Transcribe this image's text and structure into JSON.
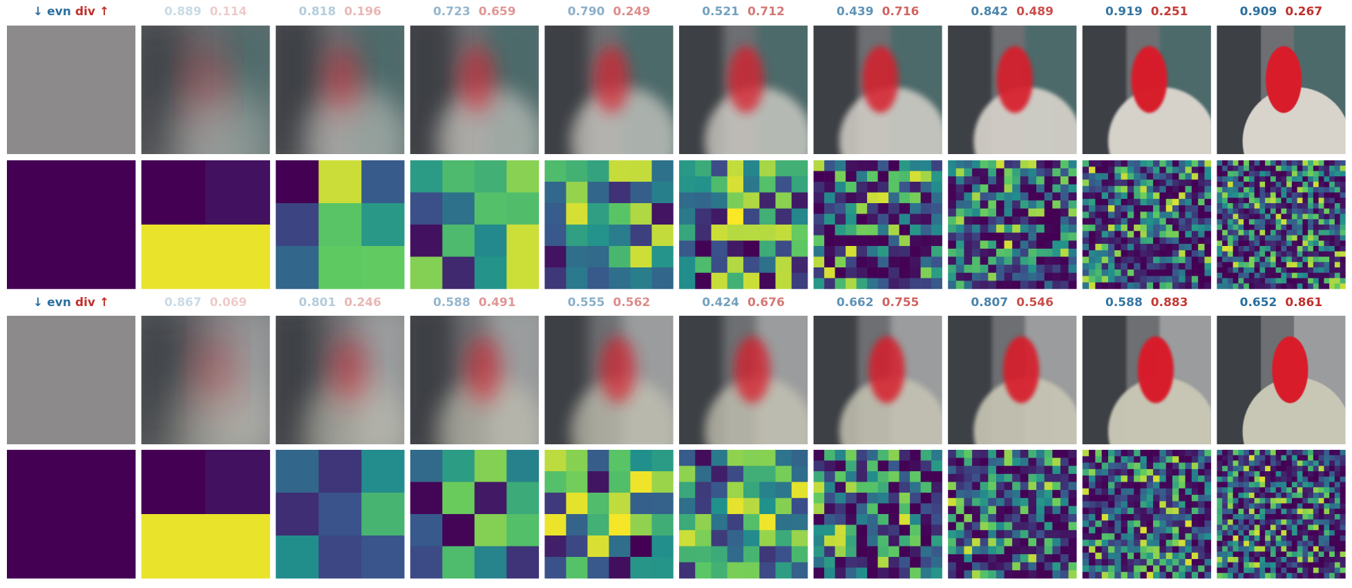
{
  "groups": [
    {
      "legend": {
        "down": "↓",
        "evn": "evn",
        "div": "div",
        "up": "↑"
      },
      "scores": [
        {
          "evn": "0.889",
          "div": "0.114"
        },
        {
          "evn": "0.818",
          "div": "0.196"
        },
        {
          "evn": "0.723",
          "div": "0.659"
        },
        {
          "evn": "0.790",
          "div": "0.249"
        },
        {
          "evn": "0.521",
          "div": "0.712"
        },
        {
          "evn": "0.439",
          "div": "0.716"
        },
        {
          "evn": "0.842",
          "div": "0.489"
        },
        {
          "evn": "0.919",
          "div": "0.251"
        },
        {
          "evn": "0.909",
          "div": "0.267"
        }
      ]
    },
    {
      "legend": {
        "down": "↓",
        "evn": "evn",
        "div": "div",
        "up": "↑"
      },
      "scores": [
        {
          "evn": "0.867",
          "div": "0.069"
        },
        {
          "evn": "0.801",
          "div": "0.246"
        },
        {
          "evn": "0.588",
          "div": "0.491"
        },
        {
          "evn": "0.555",
          "div": "0.562"
        },
        {
          "evn": "0.424",
          "div": "0.676"
        },
        {
          "evn": "0.662",
          "div": "0.755"
        },
        {
          "evn": "0.807",
          "div": "0.546"
        },
        {
          "evn": "0.588",
          "div": "0.883"
        },
        {
          "evn": "0.652",
          "div": "0.861"
        }
      ]
    }
  ]
}
